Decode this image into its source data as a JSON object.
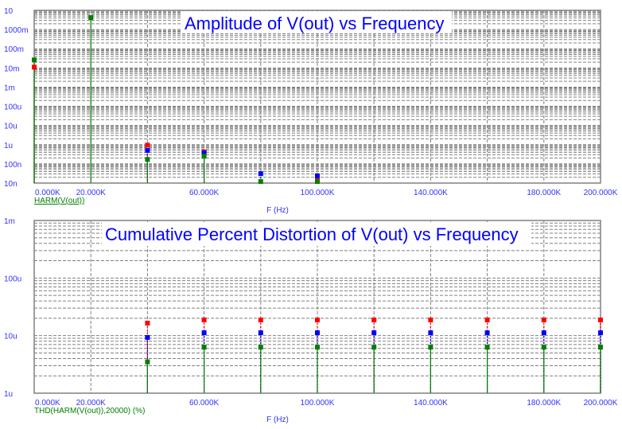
{
  "chart_data": [
    {
      "type": "scatter",
      "title": "Amplitude of V(out) vs Frequency",
      "xlabel": "F (Hz)",
      "legend": "HARM(V(out))",
      "xlim": [
        0,
        200000
      ],
      "ylim": [
        1e-08,
        10
      ],
      "yscale": "log",
      "grid": true,
      "x_ticks": [
        0,
        20000,
        40000,
        60000,
        80000,
        100000,
        120000,
        140000,
        160000,
        180000,
        200000
      ],
      "x_tick_labels": [
        "0.000K",
        "20.000K",
        "",
        "60.000K",
        "",
        "100.000K",
        "",
        "140.000K",
        "",
        "180.000K",
        "200.000K"
      ],
      "y_ticks": [
        10,
        1,
        0.1,
        0.01,
        0.001,
        0.0001,
        1e-05,
        1e-06,
        1e-07,
        1e-08
      ],
      "y_tick_labels": [
        "10",
        "1000m",
        "100m",
        "10m",
        "1m",
        "100u",
        "10u",
        "1u",
        "100n",
        "10n"
      ],
      "series": [
        {
          "color": "#ff0000",
          "x": [
            0,
            40000,
            60000,
            100000
          ],
          "y": [
            0.011,
            9.5e-07,
            4.2e-07,
            1.8e-08
          ]
        },
        {
          "color": "#0000ff",
          "x": [
            40000,
            60000,
            80000,
            100000
          ],
          "y": [
            5e-07,
            3.7e-07,
            3.1e-08,
            2.4e-08
          ]
        },
        {
          "color": "#008000",
          "x": [
            0,
            20000,
            40000,
            60000,
            80000,
            100000
          ],
          "y": [
            0.026,
            4.2,
            1.7e-07,
            2.5e-07,
            1.2e-08,
            1.2e-08
          ]
        }
      ]
    },
    {
      "type": "scatter",
      "title": "Cumulative Percent Distortion of V(out) vs Frequency",
      "xlabel": "F (Hz)",
      "legend": "THD(HARM(V(out)),20000) (%)",
      "xlim": [
        0,
        200000
      ],
      "ylim": [
        1e-06,
        0.001
      ],
      "yscale": "log",
      "grid": true,
      "x_ticks": [
        0,
        20000,
        40000,
        60000,
        80000,
        100000,
        120000,
        140000,
        160000,
        180000,
        200000
      ],
      "x_tick_labels": [
        "0.000K",
        "20.000K",
        "",
        "60.000K",
        "",
        "100.000K",
        "",
        "140.000K",
        "",
        "180.000K",
        "200.000K"
      ],
      "y_ticks": [
        0.001,
        0.0001,
        1e-05,
        1e-06
      ],
      "y_tick_labels": [
        "1m",
        "100u",
        "10u",
        "1u"
      ],
      "series": [
        {
          "color": "#ff0000",
          "x": [
            40000,
            60000,
            80000,
            100000,
            120000,
            140000,
            160000,
            180000,
            200000
          ],
          "y": [
            1.65e-05,
            1.87e-05,
            1.87e-05,
            1.87e-05,
            1.87e-05,
            1.87e-05,
            1.87e-05,
            1.87e-05,
            1.87e-05
          ]
        },
        {
          "color": "#0000ff",
          "x": [
            40000,
            60000,
            80000,
            100000,
            120000,
            140000,
            160000,
            180000,
            200000
          ],
          "y": [
            9.3e-06,
            1.12e-05,
            1.12e-05,
            1.12e-05,
            1.12e-05,
            1.12e-05,
            1.12e-05,
            1.12e-05,
            1.12e-05
          ]
        },
        {
          "color": "#008000",
          "x": [
            40000,
            60000,
            80000,
            100000,
            120000,
            140000,
            160000,
            180000,
            200000
          ],
          "y": [
            3.5e-06,
            6.3e-06,
            6.3e-06,
            6.3e-06,
            6.3e-06,
            6.3e-06,
            6.3e-06,
            6.3e-06,
            6.3e-06
          ]
        }
      ]
    }
  ]
}
